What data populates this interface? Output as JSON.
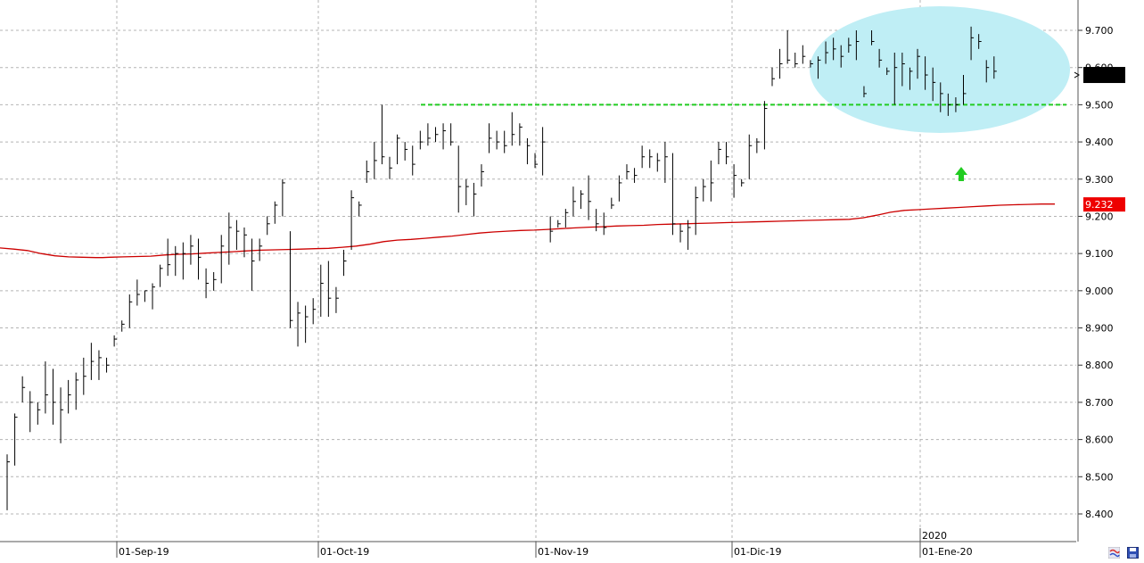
{
  "chart_data": {
    "type": "ohlc-bar",
    "title": "",
    "xlabel": "",
    "ylabel": "",
    "ylim": [
      8.32,
      9.78
    ],
    "y_ticks": [
      "9.700",
      "9.600",
      "9.500",
      "9.400",
      "9.300",
      "9.200",
      "9.100",
      "9.000",
      "8.900",
      "8.800",
      "8.700",
      "8.600",
      "8.500",
      "8.400"
    ],
    "x_labels": [
      "01-Sep-19",
      "01-Oct-19",
      "01-Nov-19",
      "01-Dic-19",
      "01-Ene-20"
    ],
    "year_marker": "2020",
    "grid": true,
    "last_price_marker": "",
    "ma_value_label": "9.232",
    "resistance_level": 9.5,
    "annotations": {
      "consolidation_zone": "ellipse",
      "breakout_arrow": "up",
      "resistance_line": "dashed-green"
    },
    "colors": {
      "bars": "#000000",
      "moving_average": "#cc0000",
      "resistance_line": "#22cc22",
      "zone_fill": "#bfeef5",
      "arrow": "#22cc22",
      "grid": "#b4b4b4",
      "ma_label_bg": "#ee0000",
      "last_label_bg": "#000000"
    },
    "bars": [
      [
        8.56,
        8.41,
        8.54
      ],
      [
        8.67,
        8.53,
        8.66
      ],
      [
        8.77,
        8.7,
        8.74
      ],
      [
        8.73,
        8.62,
        8.7
      ],
      [
        8.7,
        8.64,
        8.68
      ],
      [
        8.81,
        8.67,
        8.72
      ],
      [
        8.79,
        8.64,
        8.7
      ],
      [
        8.74,
        8.59,
        8.68
      ],
      [
        8.76,
        8.67,
        8.72
      ],
      [
        8.78,
        8.68,
        8.76
      ],
      [
        8.82,
        8.72,
        8.77
      ],
      [
        8.86,
        8.76,
        8.81
      ],
      [
        8.84,
        8.76,
        8.82
      ],
      [
        8.82,
        8.78,
        8.8
      ],
      [
        8.88,
        8.85,
        8.87
      ],
      [
        8.92,
        8.89,
        8.91
      ],
      [
        8.99,
        8.9,
        8.97
      ],
      [
        9.03,
        8.96,
        8.99
      ],
      [
        9.0,
        8.97,
        9.0
      ],
      [
        9.02,
        8.95,
        9.01
      ],
      [
        9.07,
        9.01,
        9.06
      ],
      [
        9.14,
        9.04,
        9.07
      ],
      [
        9.12,
        9.04,
        9.1
      ],
      [
        9.13,
        9.03,
        9.1
      ],
      [
        9.15,
        9.07,
        9.12
      ],
      [
        9.14,
        9.03,
        9.09
      ],
      [
        9.06,
        8.98,
        9.02
      ],
      [
        9.05,
        9.0,
        9.03
      ],
      [
        9.15,
        9.02,
        9.12
      ],
      [
        9.21,
        9.07,
        9.17
      ],
      [
        9.19,
        9.11,
        9.16
      ],
      [
        9.17,
        9.09,
        9.15
      ],
      [
        9.14,
        9.0,
        9.08
      ],
      [
        9.14,
        9.08,
        9.12
      ],
      [
        9.2,
        9.15,
        9.18
      ],
      [
        9.24,
        9.18,
        9.23
      ],
      [
        9.3,
        9.2,
        9.29
      ],
      [
        9.16,
        8.9,
        8.92
      ],
      [
        8.97,
        8.85,
        8.94
      ],
      [
        8.96,
        8.86,
        8.93
      ],
      [
        8.98,
        8.91,
        8.95
      ],
      [
        9.07,
        8.93,
        9.02
      ],
      [
        9.08,
        8.93,
        8.98
      ],
      [
        9.01,
        8.94,
        8.98
      ],
      [
        9.11,
        9.04,
        9.08
      ],
      [
        9.27,
        9.11,
        9.25
      ],
      [
        9.24,
        9.2,
        9.23
      ],
      [
        9.35,
        9.29,
        9.32
      ],
      [
        9.4,
        9.3,
        9.35
      ],
      [
        9.5,
        9.34,
        9.36
      ],
      [
        9.36,
        9.3,
        9.33
      ],
      [
        9.42,
        9.34,
        9.41
      ],
      [
        9.4,
        9.35,
        9.38
      ],
      [
        9.39,
        9.31,
        9.34
      ],
      [
        9.43,
        9.38,
        9.4
      ],
      [
        9.45,
        9.39,
        9.41
      ],
      [
        9.44,
        9.4,
        9.42
      ],
      [
        9.45,
        9.38,
        9.43
      ],
      [
        9.45,
        9.39,
        9.4
      ],
      [
        9.39,
        9.21,
        9.28
      ],
      [
        9.3,
        9.23,
        9.28
      ],
      [
        9.29,
        9.2,
        9.26
      ],
      [
        9.34,
        9.28,
        9.32
      ],
      [
        9.45,
        9.37,
        9.41
      ],
      [
        9.43,
        9.38,
        9.4
      ],
      [
        9.43,
        9.37,
        9.39
      ],
      [
        9.48,
        9.39,
        9.42
      ],
      [
        9.45,
        9.39,
        9.44
      ],
      [
        9.41,
        9.34,
        9.39
      ],
      [
        9.37,
        9.33,
        9.34
      ],
      [
        9.44,
        9.31,
        9.4
      ],
      [
        9.2,
        9.13,
        9.16
      ],
      [
        9.19,
        9.17,
        9.18
      ],
      [
        9.22,
        9.17,
        9.21
      ],
      [
        9.28,
        9.2,
        9.24
      ],
      [
        9.27,
        9.22,
        9.26
      ],
      [
        9.31,
        9.19,
        9.24
      ],
      [
        9.22,
        9.16,
        9.18
      ],
      [
        9.21,
        9.15,
        9.17
      ],
      [
        9.25,
        9.22,
        9.23
      ],
      [
        9.31,
        9.24,
        9.29
      ],
      [
        9.34,
        9.3,
        9.32
      ],
      [
        9.33,
        9.29,
        9.31
      ],
      [
        9.39,
        9.33,
        9.36
      ],
      [
        9.38,
        9.33,
        9.36
      ],
      [
        9.37,
        9.32,
        9.35
      ],
      [
        9.4,
        9.29,
        9.36
      ],
      [
        9.37,
        9.15,
        9.18
      ],
      [
        9.18,
        9.13,
        9.16
      ],
      [
        9.19,
        9.11,
        9.17
      ],
      [
        9.28,
        9.15,
        9.25
      ],
      [
        9.3,
        9.24,
        9.28
      ],
      [
        9.35,
        9.24,
        9.29
      ],
      [
        9.4,
        9.34,
        9.38
      ],
      [
        9.4,
        9.34,
        9.36
      ],
      [
        9.34,
        9.25,
        9.31
      ],
      [
        9.3,
        9.28,
        9.29
      ],
      [
        9.42,
        9.3,
        9.39
      ],
      [
        9.41,
        9.37,
        9.4
      ],
      [
        9.51,
        9.38,
        9.49
      ],
      [
        9.6,
        9.55,
        9.57
      ],
      [
        9.65,
        9.57,
        9.61
      ],
      [
        9.7,
        9.61,
        9.62
      ],
      [
        9.64,
        9.6,
        9.61
      ],
      [
        9.66,
        9.61,
        9.63
      ],
      [
        9.62,
        9.6,
        9.61
      ],
      [
        9.63,
        9.57,
        9.62
      ],
      [
        9.67,
        9.61,
        9.64
      ],
      [
        9.68,
        9.62,
        9.65
      ],
      [
        9.66,
        9.6,
        9.63
      ],
      [
        9.68,
        9.64,
        9.66
      ],
      [
        9.7,
        9.62,
        9.67
      ],
      [
        9.55,
        9.52,
        9.53
      ],
      [
        9.7,
        9.66,
        9.67
      ],
      [
        9.65,
        9.6,
        9.62
      ],
      [
        9.6,
        9.58,
        9.59
      ],
      [
        9.64,
        9.5,
        9.6
      ],
      [
        9.64,
        9.55,
        9.61
      ],
      [
        9.6,
        9.54,
        9.59
      ],
      [
        9.65,
        9.57,
        9.63
      ],
      [
        9.63,
        9.54,
        9.58
      ],
      [
        9.6,
        9.51,
        9.56
      ],
      [
        9.56,
        9.48,
        9.53
      ],
      [
        9.53,
        9.47,
        9.5
      ],
      [
        9.52,
        9.48,
        9.5
      ],
      [
        9.58,
        9.5,
        9.53
      ],
      [
        9.71,
        9.62,
        9.68
      ],
      [
        9.69,
        9.65,
        9.67
      ],
      [
        9.62,
        9.56,
        9.6
      ],
      [
        9.63,
        9.57,
        9.59
      ]
    ],
    "moving_average": [
      [
        0,
        9.115
      ],
      [
        8,
        9.112
      ],
      [
        16,
        9.108
      ],
      [
        24,
        9.1
      ],
      [
        32,
        9.094
      ],
      [
        40,
        9.091
      ],
      [
        48,
        9.09
      ],
      [
        56,
        9.089
      ],
      [
        60,
        9.089
      ],
      [
        64,
        9.09
      ],
      [
        72,
        9.091
      ],
      [
        80,
        9.092
      ],
      [
        88,
        9.093
      ],
      [
        96,
        9.096
      ],
      [
        104,
        9.098
      ],
      [
        112,
        9.099
      ],
      [
        120,
        9.101
      ],
      [
        128,
        9.103
      ],
      [
        136,
        9.105
      ],
      [
        144,
        9.107
      ],
      [
        152,
        9.109
      ],
      [
        160,
        9.11
      ],
      [
        168,
        9.111
      ],
      [
        176,
        9.112
      ],
      [
        184,
        9.113
      ],
      [
        192,
        9.114
      ],
      [
        200,
        9.117
      ],
      [
        208,
        9.12
      ],
      [
        216,
        9.125
      ],
      [
        224,
        9.132
      ],
      [
        232,
        9.136
      ],
      [
        240,
        9.138
      ],
      [
        248,
        9.141
      ],
      [
        256,
        9.144
      ],
      [
        264,
        9.147
      ],
      [
        272,
        9.151
      ],
      [
        280,
        9.155
      ],
      [
        288,
        9.158
      ],
      [
        296,
        9.16
      ],
      [
        304,
        9.162
      ],
      [
        312,
        9.163
      ],
      [
        320,
        9.165
      ],
      [
        328,
        9.167
      ],
      [
        336,
        9.169
      ],
      [
        344,
        9.171
      ],
      [
        352,
        9.172
      ],
      [
        360,
        9.174
      ],
      [
        368,
        9.175
      ],
      [
        376,
        9.176
      ],
      [
        384,
        9.178
      ],
      [
        392,
        9.179
      ],
      [
        400,
        9.18
      ],
      [
        408,
        9.181
      ],
      [
        416,
        9.182
      ],
      [
        424,
        9.183
      ],
      [
        432,
        9.184
      ],
      [
        440,
        9.185
      ],
      [
        448,
        9.186
      ],
      [
        456,
        9.187
      ],
      [
        464,
        9.188
      ],
      [
        472,
        9.189
      ],
      [
        480,
        9.19
      ],
      [
        488,
        9.191
      ],
      [
        496,
        9.192
      ],
      [
        504,
        9.196
      ],
      [
        512,
        9.203
      ],
      [
        520,
        9.211
      ],
      [
        528,
        9.216
      ],
      [
        536,
        9.218
      ],
      [
        544,
        9.22
      ],
      [
        552,
        9.222
      ],
      [
        560,
        9.224
      ],
      [
        568,
        9.226
      ],
      [
        576,
        9.228
      ],
      [
        584,
        9.23
      ],
      [
        592,
        9.231
      ],
      [
        600,
        9.232
      ],
      [
        608,
        9.233
      ],
      [
        616,
        9.233
      ]
    ]
  }
}
